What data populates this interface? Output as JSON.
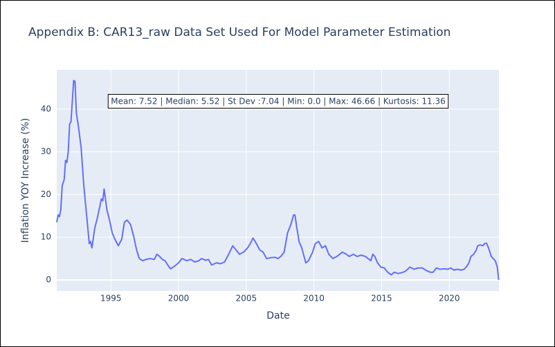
{
  "chart_data": {
    "type": "line",
    "title": "Appendix B: CAR13_raw Data Set Used For Model Parameter Estimation",
    "x_label": "Date",
    "y_label": "Inflation YOY Increase (%)",
    "annotation": "Mean: 7.52 | Median: 5.52 | St Dev :7.04 | Min: 0.0 | Max: 46.66 | Kurtosis: 11.36",
    "xlim": [
      1991.0,
      2023.67
    ],
    "xticks": [
      1995,
      2000,
      2005,
      2010,
      2015,
      2020
    ],
    "ylim": [
      -2.6,
      49.2
    ],
    "yticks": [
      0,
      10,
      20,
      30,
      40
    ],
    "grid": true,
    "series": [
      {
        "name": "CAR13_raw",
        "color": "#636efa",
        "x": [
          1991.0,
          1991.1,
          1991.2,
          1991.3,
          1991.4,
          1991.55,
          1991.65,
          1991.75,
          1991.85,
          1991.95,
          1992.05,
          1992.25,
          1992.35,
          1992.45,
          1992.6,
          1992.8,
          1993.0,
          1993.15,
          1993.3,
          1993.4,
          1993.5,
          1993.6,
          1993.8,
          1994.0,
          1994.2,
          1994.3,
          1994.4,
          1994.5,
          1994.7,
          1994.9,
          1995.1,
          1995.3,
          1995.55,
          1995.8,
          1996.0,
          1996.2,
          1996.45,
          1996.7,
          1996.9,
          1997.1,
          1997.35,
          1997.6,
          1997.9,
          1998.2,
          1998.4,
          1998.6,
          1998.8,
          1999.0,
          1999.2,
          1999.4,
          1999.7,
          2000.0,
          2000.25,
          2000.6,
          2000.9,
          2001.2,
          2001.5,
          2001.7,
          2002.0,
          2002.2,
          2002.45,
          2002.8,
          2003.1,
          2003.4,
          2003.7,
          2004.0,
          2004.25,
          2004.5,
          2004.8,
          2005.1,
          2005.3,
          2005.5,
          2005.75,
          2006.0,
          2006.25,
          2006.5,
          2006.8,
          2007.1,
          2007.35,
          2007.55,
          2007.8,
          2008.05,
          2008.3,
          2008.5,
          2008.6,
          2008.7,
          2008.9,
          2009.1,
          2009.4,
          2009.6,
          2009.9,
          2010.1,
          2010.35,
          2010.6,
          2010.85,
          2011.1,
          2011.4,
          2011.7,
          2012.1,
          2012.4,
          2012.6,
          2012.9,
          2013.2,
          2013.5,
          2013.8,
          2014.0,
          2014.2,
          2014.35,
          2014.5,
          2014.7,
          2014.95,
          2015.2,
          2015.45,
          2015.7,
          2015.95,
          2016.2,
          2016.5,
          2016.75,
          2017.1,
          2017.4,
          2017.7,
          2018.0,
          2018.3,
          2018.6,
          2018.8,
          2019.05,
          2019.3,
          2019.6,
          2019.9,
          2020.1,
          2020.35,
          2020.6,
          2020.85,
          2021.1,
          2021.3,
          2021.45,
          2021.6,
          2021.8,
          2022.0,
          2022.1,
          2022.3,
          2022.5,
          2022.6,
          2022.75,
          2022.9,
          2023.1,
          2023.25,
          2023.4,
          2023.55,
          2023.65
        ],
        "values": [
          13.5,
          15.2,
          14.8,
          16.5,
          22,
          23.5,
          28,
          27.5,
          30,
          36.5,
          37,
          46.7,
          46.5,
          39,
          36,
          31,
          22,
          17,
          12,
          8.5,
          9,
          7.5,
          12,
          14.5,
          17.5,
          19,
          18.5,
          21.3,
          16.5,
          14,
          11,
          9.5,
          8,
          9.5,
          13.5,
          14,
          13,
          10,
          7,
          5,
          4.5,
          4.8,
          5,
          4.8,
          6,
          5.5,
          4.8,
          4.5,
          3.5,
          2.6,
          3.2,
          4,
          5,
          4.5,
          4.8,
          4.2,
          4.5,
          5,
          4.6,
          4.8,
          3.5,
          4,
          3.8,
          4.2,
          6,
          8,
          7,
          6,
          6.5,
          7.5,
          8.5,
          9.8,
          8.5,
          7,
          6.5,
          5,
          5.2,
          5.3,
          5,
          5.5,
          6.5,
          11,
          13,
          15.2,
          15.2,
          13,
          9,
          7.5,
          4,
          4.5,
          6.5,
          8.5,
          9,
          7.5,
          8,
          6,
          5,
          5.5,
          6.5,
          6,
          5.5,
          6,
          5.5,
          5.8,
          5.5,
          5,
          4.5,
          6,
          5.5,
          4,
          3,
          2.8,
          1.8,
          1.2,
          1.8,
          1.5,
          1.7,
          2,
          3,
          2.5,
          2.8,
          2.8,
          2.2,
          1.8,
          1.8,
          2.8,
          2.5,
          2.6,
          2.5,
          2.8,
          2.3,
          2.5,
          2.3,
          2.5,
          3.2,
          4,
          5.5,
          6,
          7,
          8,
          8.2,
          8,
          8.5,
          8.6,
          7.5,
          5.5,
          5,
          4.5,
          3,
          0
        ]
      }
    ]
  }
}
